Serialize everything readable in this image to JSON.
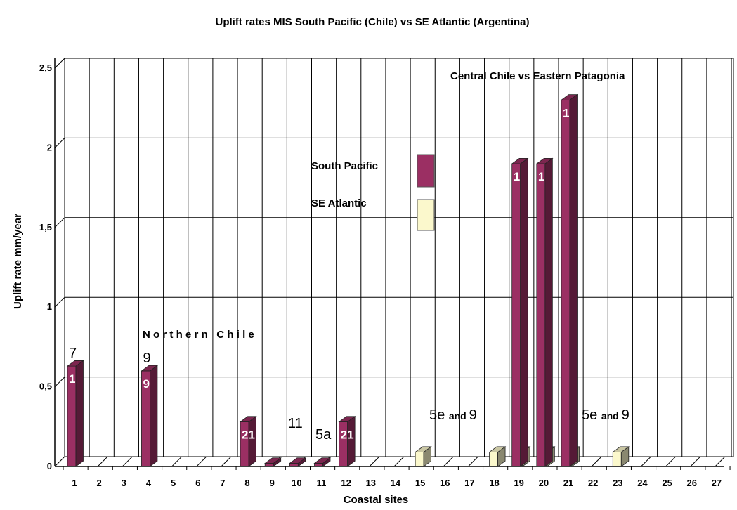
{
  "chart_data": {
    "type": "bar",
    "title": "Uplift rates MIS South Pacific (Chile) vs SE Atlantic (Argentina)",
    "xlabel": "Coastal sites",
    "ylabel": "Uplift rate mm/year",
    "ylim": [
      0,
      2.5
    ],
    "y_ticks": [
      "0",
      "0,5",
      "1",
      "1,5",
      "2",
      "2,5"
    ],
    "grid": true,
    "categories": [
      "1",
      "2",
      "3",
      "4",
      "5",
      "6",
      "7",
      "8",
      "9",
      "10",
      "11",
      "12",
      "13",
      "14",
      "15",
      "16",
      "17",
      "18",
      "19",
      "20",
      "21",
      "22",
      "23",
      "24",
      "25",
      "26",
      "27"
    ],
    "series": [
      {
        "name": "South Pacific",
        "color": "#9b2f63",
        "values": [
          0.63,
          0,
          0,
          0.6,
          0,
          0,
          0,
          0.28,
          0.02,
          0.02,
          0.02,
          0.28,
          0,
          0,
          0,
          0,
          0,
          0,
          1.9,
          1.9,
          2.3,
          0,
          0,
          0,
          0,
          0,
          0
        ]
      },
      {
        "name": "SE Atlantic",
        "color": "#fbf8cc",
        "values": [
          0,
          0,
          0,
          0,
          0,
          0,
          0,
          0,
          0,
          0,
          0,
          0,
          0,
          0,
          0.09,
          0,
          0,
          0.09,
          0.09,
          0.09,
          0.09,
          0,
          0.09,
          0,
          0,
          0,
          0
        ]
      }
    ],
    "legend_position": "center",
    "bar_labels": [
      {
        "index": 0,
        "text": "7",
        "style": "above"
      },
      {
        "index": 0,
        "text": "1",
        "style": "inside"
      },
      {
        "index": 3,
        "text": "9",
        "style": "above"
      },
      {
        "index": 3,
        "text": "9",
        "style": "inside"
      },
      {
        "index": 7,
        "text": "21",
        "style": "inside"
      },
      {
        "index": 11,
        "text": "21",
        "style": "inside"
      },
      {
        "index": 18,
        "text": "1",
        "style": "inside"
      },
      {
        "index": 19,
        "text": "1",
        "style": "inside"
      },
      {
        "index": 20,
        "text": "1",
        "style": "inside"
      }
    ],
    "annotations": [
      {
        "text": "Northern   Chile"
      },
      {
        "text": "Central Chile vs Eastern Patagonia"
      },
      {
        "text": "11"
      },
      {
        "text": "5a"
      },
      {
        "text": "5e",
        "text_small": "and",
        "text_end": "9"
      },
      {
        "text": "5e",
        "text_small": "and",
        "text_end": "9"
      }
    ]
  }
}
